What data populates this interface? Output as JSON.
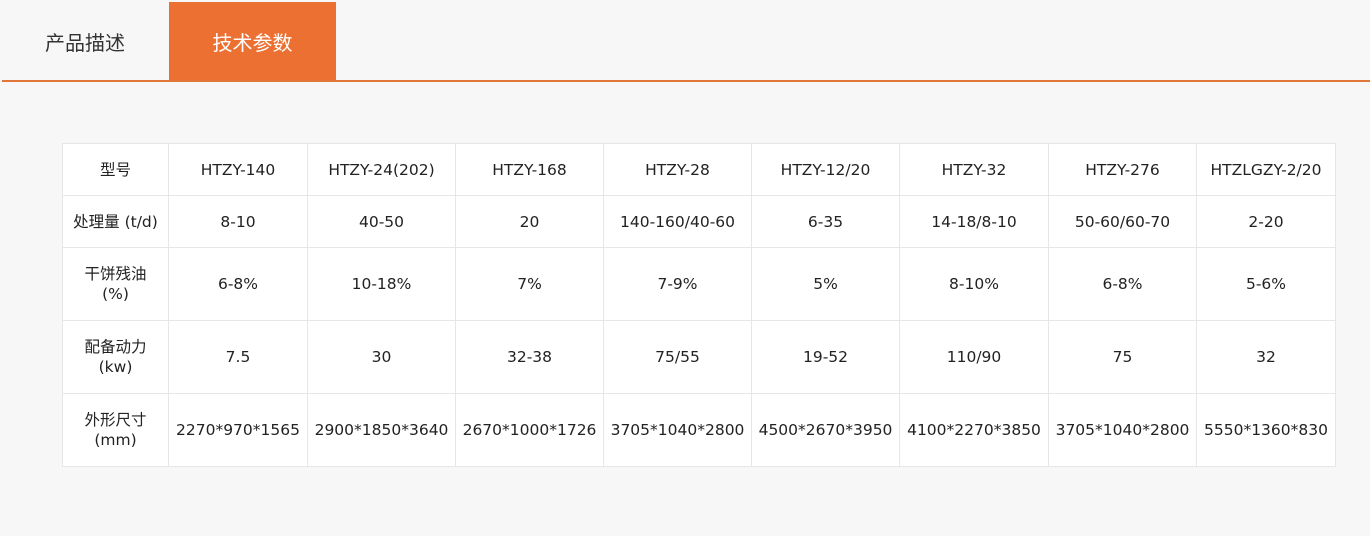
{
  "tabs": [
    {
      "label": "产品描述",
      "active": false
    },
    {
      "label": "技术参数",
      "active": true
    }
  ],
  "accent_color": "#ec7032",
  "table": {
    "rows": [
      {
        "label": [
          "型号"
        ],
        "cells": [
          "HTZY-140",
          "HTZY-24(202)",
          "HTZY-168",
          "HTZY-28",
          "HTZY-12/20",
          "HTZY-32",
          "HTZY-276",
          "HTZLGZY-2/20"
        ]
      },
      {
        "label": [
          "处理量 (t/d)"
        ],
        "cells": [
          "8-10",
          "40-50",
          "20",
          "140-160/40-60",
          "6-35",
          "14-18/8-10",
          "50-60/60-70",
          "2-20"
        ]
      },
      {
        "label": [
          "干饼残油",
          "(%)"
        ],
        "cells": [
          "6-8%",
          "10-18%",
          "7%",
          "7-9%",
          "5%",
          "8-10%",
          "6-8%",
          "5-6%"
        ]
      },
      {
        "label": [
          "配备动力",
          "(kw)"
        ],
        "cells": [
          "7.5",
          "30",
          "32-38",
          "75/55",
          "19-52",
          "110/90",
          "75",
          "32"
        ]
      },
      {
        "label": [
          "外形尺寸",
          "(mm)"
        ],
        "cells": [
          "2270*970*1565",
          "2900*1850*3640",
          "2670*1000*1726",
          "3705*1040*2800",
          "4500*2670*3950",
          "4100*2270*3850",
          "3705*1040*2800",
          "5550*1360*830"
        ]
      }
    ]
  }
}
